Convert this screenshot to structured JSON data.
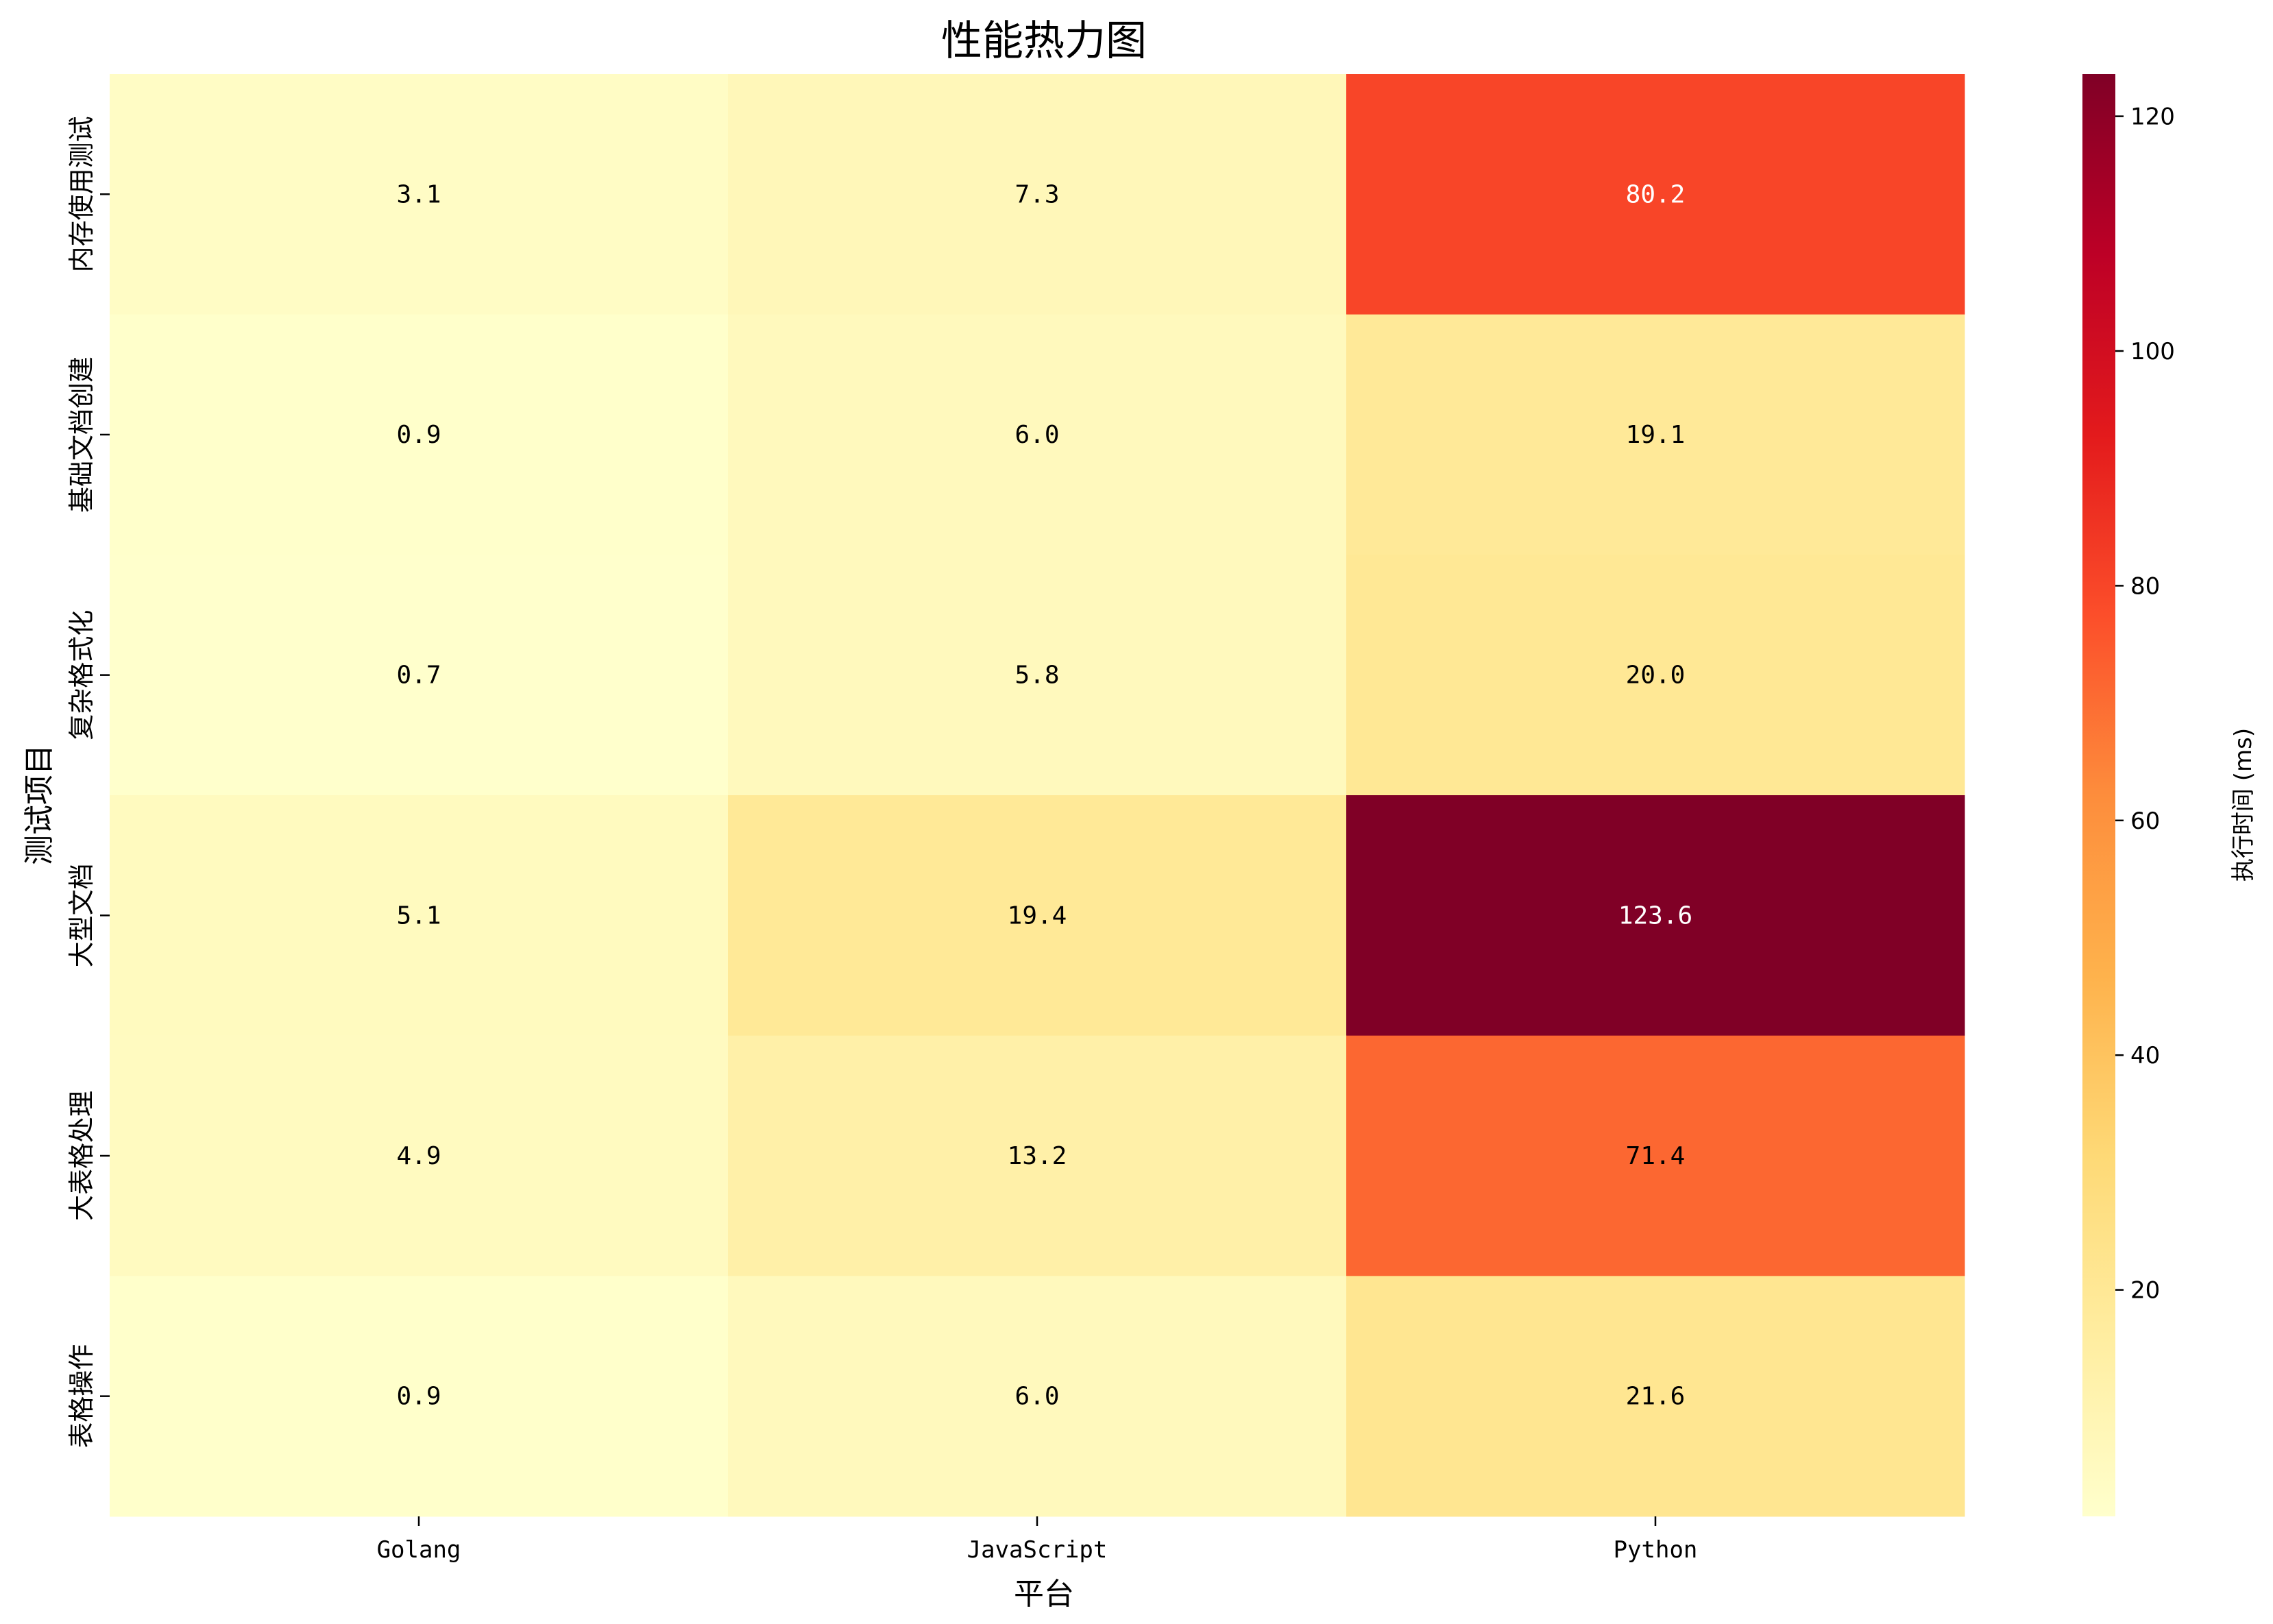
{
  "chart_data": {
    "type": "heatmap",
    "title": "性能热力图",
    "xlabel": "平台",
    "ylabel": "测试项目",
    "x_categories": [
      "Golang",
      "JavaScript",
      "Python"
    ],
    "y_categories": [
      "内存使用测试",
      "基础文档创建",
      "复杂格式化",
      "大型文档",
      "大表格处理",
      "表格操作"
    ],
    "values": [
      [
        3.1,
        7.3,
        80.2
      ],
      [
        0.9,
        6.0,
        19.1
      ],
      [
        0.7,
        5.8,
        20.0
      ],
      [
        5.1,
        19.4,
        123.6
      ],
      [
        4.9,
        13.2,
        71.4
      ],
      [
        0.9,
        6.0,
        21.6
      ]
    ],
    "value_format": "0.1f",
    "colormap": "YlOrRd",
    "vmin": 0.7,
    "vmax": 123.6,
    "colorbar": {
      "label": "执行时间 (ms)",
      "ticks": [
        20,
        40,
        60,
        80,
        100,
        120
      ]
    },
    "grid": false,
    "colors": [
      "#ffffcc",
      "#ffeda0",
      "#fed976",
      "#feb24c",
      "#fd8d3c",
      "#fc4e2a",
      "#e31a1c",
      "#bd0026",
      "#800026"
    ]
  }
}
